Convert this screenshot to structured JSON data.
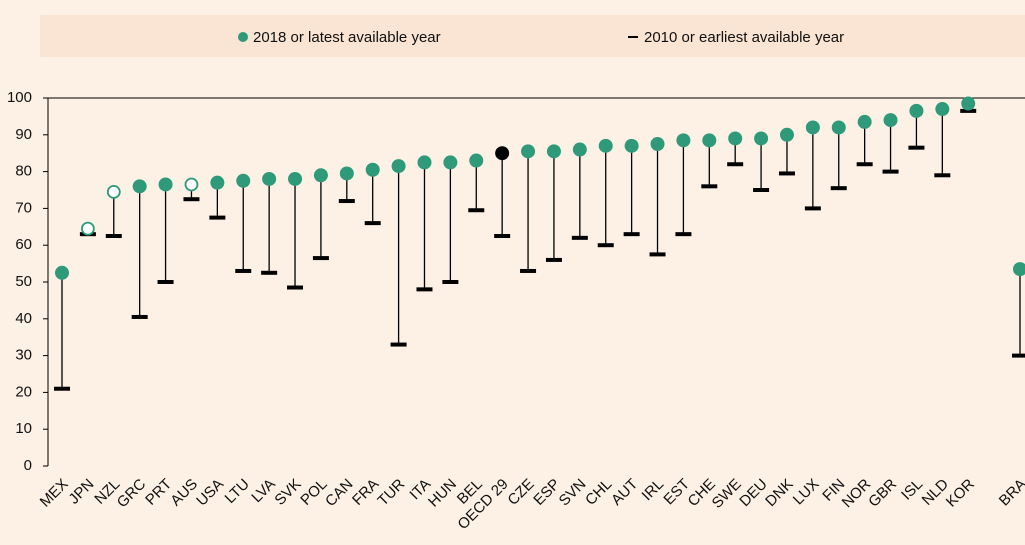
{
  "chart_data": {
    "type": "dotrange",
    "categories": [
      "MEX",
      "JPN",
      "NZL",
      "GRC",
      "PRT",
      "AUS",
      "USA",
      "LTU",
      "LVA",
      "SVK",
      "POL",
      "CAN",
      "FRA",
      "TUR",
      "ITA",
      "HUN",
      "BEL",
      "OECD 29",
      "CZE",
      "ESP",
      "SVN",
      "CHL",
      "AUT",
      "IRL",
      "EST",
      "CHE",
      "SWE",
      "DEU",
      "DNK",
      "LUX",
      "FIN",
      "NOR",
      "GBR",
      "ISL",
      "NLD",
      "KOR",
      null,
      "BRA"
    ],
    "series": [
      {
        "name": "2018 or latest available year",
        "color": "#2e9a7a",
        "values": [
          52.5,
          64.5,
          74.5,
          76,
          76.5,
          76.5,
          77,
          77.5,
          78,
          78,
          79,
          79.5,
          80.5,
          81.5,
          82.5,
          82.5,
          83,
          85,
          85.5,
          85.5,
          86,
          87,
          87,
          87.5,
          88.5,
          88.5,
          89,
          89,
          90,
          92,
          92,
          93.5,
          94,
          96.5,
          97,
          98.5,
          null,
          53.5
        ],
        "point_colors": [
          "#2e9a7a",
          "#2e9a7a",
          "#2e9a7a",
          "#2e9a7a",
          "#2e9a7a",
          "#2e9a7a",
          "#2e9a7a",
          "#2e9a7a",
          "#2e9a7a",
          "#2e9a7a",
          "#2e9a7a",
          "#2e9a7a",
          "#2e9a7a",
          "#2e9a7a",
          "#2e9a7a",
          "#2e9a7a",
          "#2e9a7a",
          "#000000",
          "#2e9a7a",
          "#2e9a7a",
          "#2e9a7a",
          "#2e9a7a",
          "#2e9a7a",
          "#2e9a7a",
          "#2e9a7a",
          "#2e9a7a",
          "#2e9a7a",
          "#2e9a7a",
          "#2e9a7a",
          "#2e9a7a",
          "#2e9a7a",
          "#2e9a7a",
          "#2e9a7a",
          "#2e9a7a",
          "#2e9a7a",
          "#2e9a7a",
          "#2e9a7a",
          "#2e9a7a"
        ],
        "filled": [
          true,
          false,
          false,
          true,
          true,
          false,
          true,
          true,
          true,
          true,
          true,
          true,
          true,
          true,
          true,
          true,
          true,
          true,
          true,
          true,
          true,
          true,
          true,
          true,
          true,
          true,
          true,
          true,
          true,
          true,
          true,
          true,
          true,
          true,
          true,
          true,
          true,
          true
        ]
      },
      {
        "name": "2010 or earliest available year",
        "color": "#000000",
        "values": [
          21,
          63,
          62.5,
          40.5,
          50,
          72.5,
          67.5,
          53,
          52.5,
          48.5,
          56.5,
          72,
          66,
          33,
          48,
          50,
          69.5,
          62.5,
          53,
          56,
          62,
          60,
          63,
          57.5,
          63,
          76,
          82,
          75,
          79.5,
          70,
          75.5,
          82,
          80,
          86.5,
          79,
          96.5,
          null,
          30
        ]
      }
    ],
    "ylim": [
      0,
      100
    ],
    "yticks": [
      0,
      10,
      20,
      30,
      40,
      50,
      60,
      70,
      80,
      90,
      100
    ],
    "grid": false
  }
}
